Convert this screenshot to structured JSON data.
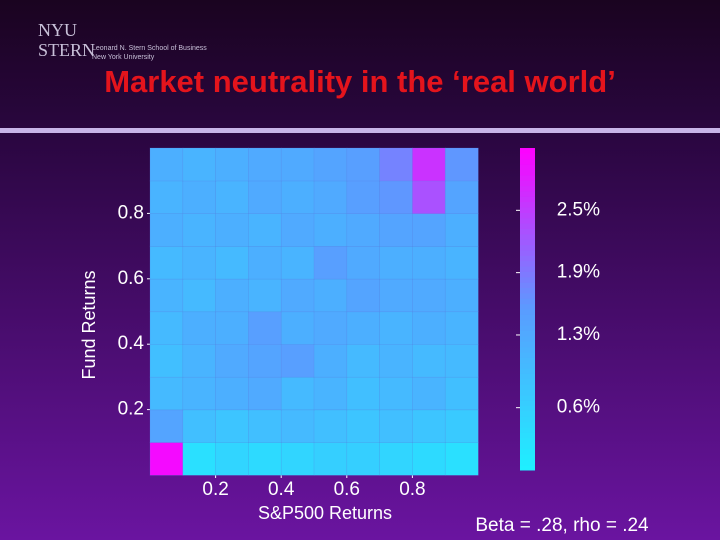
{
  "logo": {
    "mark_top": "NYU",
    "mark_bottom": "STERN",
    "school": "Leonard N. Stern School of Business",
    "university": "New York University"
  },
  "chart_data": {
    "type": "heatmap",
    "title": "Market neutrality in the ‘real world’",
    "x_label": "S&P500 Returns",
    "y_label": "Fund Returns",
    "annotation": "Beta = .28, rho = .24",
    "xlim": [
      0,
      1
    ],
    "ylim": [
      0,
      1
    ],
    "xticks": [
      0.2,
      0.4,
      0.6,
      0.8
    ],
    "yticks": [
      0.2,
      0.4,
      0.6,
      0.8
    ],
    "z": [
      [
        3.0,
        0.3,
        0.5,
        0.4,
        0.5,
        0.6,
        0.6,
        0.5,
        0.4,
        0.3
      ],
      [
        1.4,
        0.9,
        0.8,
        0.9,
        1.0,
        0.9,
        0.8,
        0.9,
        0.8,
        0.7
      ],
      [
        1.0,
        1.1,
        1.2,
        1.3,
        1.0,
        1.1,
        0.9,
        1.0,
        1.1,
        0.9
      ],
      [
        0.9,
        1.1,
        1.3,
        1.4,
        1.5,
        1.2,
        1.0,
        1.1,
        1.0,
        1.0
      ],
      [
        1.0,
        1.2,
        1.2,
        1.5,
        1.2,
        1.3,
        1.2,
        1.1,
        1.2,
        1.1
      ],
      [
        1.1,
        1.0,
        1.2,
        1.1,
        1.3,
        1.2,
        1.4,
        1.3,
        1.3,
        1.2
      ],
      [
        1.0,
        1.1,
        1.0,
        1.2,
        1.1,
        1.5,
        1.3,
        1.2,
        1.2,
        1.1
      ],
      [
        1.2,
        1.1,
        1.2,
        1.1,
        1.3,
        1.2,
        1.3,
        1.4,
        1.4,
        1.2
      ],
      [
        1.1,
        1.2,
        1.1,
        1.3,
        1.2,
        1.3,
        1.5,
        1.6,
        2.3,
        1.4
      ],
      [
        1.2,
        1.1,
        1.2,
        1.3,
        1.3,
        1.4,
        1.5,
        1.8,
        2.6,
        1.6
      ]
    ],
    "clim": [
      0,
      3.1
    ],
    "cticks": [
      {
        "value": 0.6,
        "label": "0.6%"
      },
      {
        "value": 1.3,
        "label": "1.3%"
      },
      {
        "value": 1.9,
        "label": "1.9%"
      },
      {
        "value": 2.5,
        "label": "2.5%"
      }
    ],
    "colormap": [
      "#1ef0ff",
      "#5a9cff",
      "#ff00ff"
    ]
  }
}
